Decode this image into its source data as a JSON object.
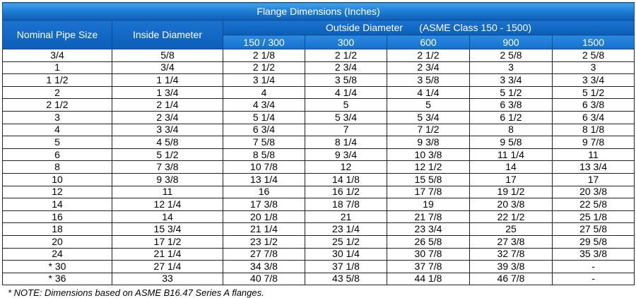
{
  "title": "Flange  Dimensions  (Inches)",
  "headers": {
    "nominal": "Nominal Pipe Size",
    "inside": "Inside Diameter",
    "outside": "Outside Diameter      (ASME Class 150 - 1500)",
    "classes": [
      "150 / 300",
      "300",
      "600",
      "900",
      "1500"
    ]
  },
  "rows": [
    [
      "3/4",
      "5/8",
      "2 1/8",
      "2 1/2",
      "2 1/2",
      "2 5/8",
      "2 5/8"
    ],
    [
      "1",
      "3/4",
      "2 1/2",
      "2 3/4",
      "2 3/4",
      "3",
      "3"
    ],
    [
      "1 1/2",
      "1 1/4",
      "3 1/4",
      "3 5/8",
      "3 5/8",
      "3 3/4",
      "3 3/4"
    ],
    [
      "2",
      "1 3/4",
      "4",
      "4 1/4",
      "4 1/4",
      "5 1/2",
      "5 1/2"
    ],
    [
      "2 1/2",
      "2 1/4",
      "4 3/4",
      "5",
      "5",
      "6 3/8",
      "6 3/8"
    ],
    [
      "3",
      "2 3/4",
      "5 1/4",
      "5 3/4",
      "5 3/4",
      "6 1/2",
      "6 3/4"
    ],
    [
      "4",
      "3 3/4",
      "6 3/4",
      "7",
      "7 1/2",
      "8",
      "8 1/8"
    ],
    [
      "5",
      "4 5/8",
      "7 5/8",
      "8 1/4",
      "9 3/8",
      "9 5/8",
      "9 7/8"
    ],
    [
      "6",
      "5 1/2",
      "8 5/8",
      "9 3/4",
      "10 3/8",
      "11 1/4",
      "11"
    ],
    [
      "8",
      "7 3/8",
      "10 7/8",
      "12",
      "12 1/2",
      "14",
      "13 3/4"
    ],
    [
      "10",
      "9 3/8",
      "13 1/4",
      "14 1/8",
      "15 5/8",
      "17",
      "17"
    ],
    [
      "12",
      "11",
      "16",
      "16 1/2",
      "17 7/8",
      "19 1/2",
      "20 3/8"
    ],
    [
      "14",
      "12 1/4",
      "17 3/8",
      "18 7/8",
      "19",
      "20 3/8",
      "22 5/8"
    ],
    [
      "16",
      "14",
      "20 1/8",
      "21",
      "21 7/8",
      "22 1/2",
      "25 1/8"
    ],
    [
      "18",
      "15 3/4",
      "21 1/4",
      "23 1/4",
      "23 3/4",
      "25",
      "27 5/8"
    ],
    [
      "20",
      "17 1/2",
      "23 1/2",
      "25 1/2",
      "26 5/8",
      "27 3/8",
      "29 5/8"
    ],
    [
      "24",
      "21 1/4",
      "27 7/8",
      "30 1/4",
      "30 7/8",
      "32 7/8",
      "35 3/8"
    ],
    [
      "* 30",
      "27 1/4",
      "34 3/8",
      "37 1/8",
      "37 7/8",
      "39 3/8",
      "-"
    ],
    [
      "* 36",
      "33",
      "40 7/8",
      "43 5/8",
      "44 1/8",
      "46 7/8",
      "-"
    ]
  ],
  "note": "* NOTE: Dimensions based on ASME B16.47 Series A flanges."
}
